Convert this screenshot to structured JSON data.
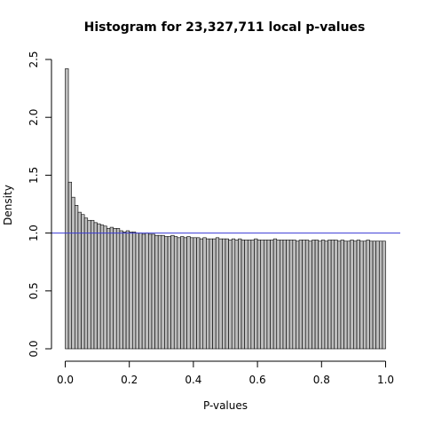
{
  "chart_data": {
    "type": "bar",
    "title": "Histogram for 23,327,711 local p-values",
    "xlabel": "P-values",
    "ylabel": "Density",
    "xlim": [
      0.0,
      1.0
    ],
    "ylim": [
      0.0,
      2.5
    ],
    "xticks": [
      "0.0",
      "0.2",
      "0.4",
      "0.6",
      "0.8",
      "1.0"
    ],
    "yticks": [
      "0.0",
      "0.5",
      "1.0",
      "1.5",
      "2.0",
      "2.5"
    ],
    "bin_width": 0.01,
    "bin_start": 0.0,
    "values": [
      2.42,
      1.44,
      1.31,
      1.24,
      1.18,
      1.16,
      1.13,
      1.11,
      1.11,
      1.09,
      1.08,
      1.07,
      1.06,
      1.04,
      1.05,
      1.04,
      1.04,
      1.02,
      1.01,
      1.02,
      1.01,
      1.01,
      1.0,
      1.0,
      0.99,
      1.0,
      0.99,
      0.99,
      0.98,
      0.98,
      0.98,
      0.97,
      0.97,
      0.98,
      0.97,
      0.96,
      0.97,
      0.96,
      0.97,
      0.96,
      0.96,
      0.96,
      0.95,
      0.96,
      0.95,
      0.95,
      0.95,
      0.96,
      0.95,
      0.95,
      0.95,
      0.94,
      0.95,
      0.94,
      0.95,
      0.94,
      0.94,
      0.94,
      0.94,
      0.95,
      0.94,
      0.94,
      0.94,
      0.94,
      0.94,
      0.95,
      0.94,
      0.94,
      0.94,
      0.94,
      0.94,
      0.94,
      0.93,
      0.94,
      0.94,
      0.94,
      0.93,
      0.94,
      0.94,
      0.93,
      0.94,
      0.93,
      0.94,
      0.94,
      0.94,
      0.93,
      0.94,
      0.93,
      0.93,
      0.94,
      0.93,
      0.94,
      0.93,
      0.93,
      0.94,
      0.93,
      0.93,
      0.93,
      0.93,
      0.93
    ],
    "reference_line": {
      "y": 1.0,
      "color": "#3a3ad6"
    },
    "bar_color": "#bebebe",
    "grid": false,
    "legend": "none"
  }
}
